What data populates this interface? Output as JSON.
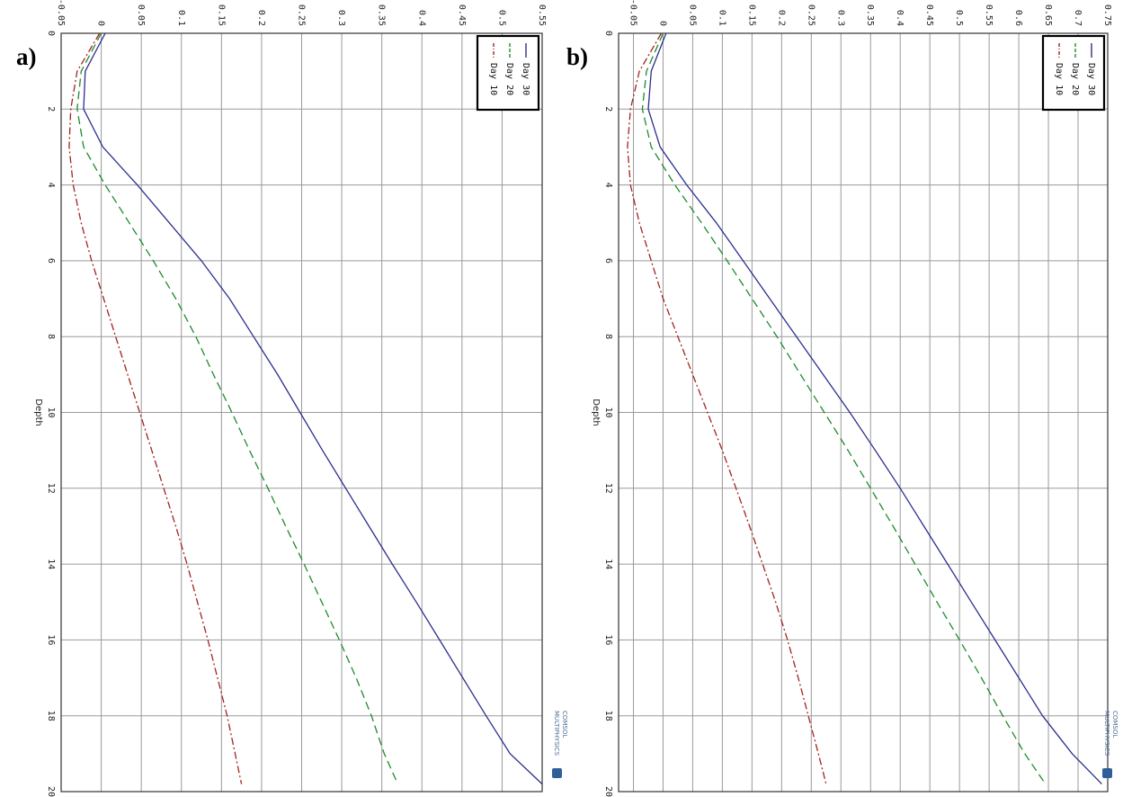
{
  "figure": {
    "colors": {
      "Day 30": "#2b2f8c",
      "Day 20": "#1e8b2a",
      "Day 10": "#a3231c"
    },
    "watermark": {
      "line1": "COMSOL",
      "line2": "MULTIPHYSICS"
    }
  },
  "chart_data": [
    {
      "panel_label": "a)",
      "type": "line",
      "orientation": "rotated 90° clockwise (depth axis runs top to bottom)",
      "xlabel": "Depth",
      "ylabel": "",
      "xlim": [
        0,
        20
      ],
      "ylim": [
        -0.05,
        0.55
      ],
      "x_ticks": [
        "0",
        "2",
        "4",
        "6",
        "8",
        "10",
        "12",
        "14",
        "16",
        "18",
        "20"
      ],
      "y_ticks": [
        "-0.05",
        "0",
        "0.05",
        "0.1",
        "0.15",
        "0.2",
        "0.25",
        "0.3",
        "0.35",
        "0.4",
        "0.45",
        "0.5",
        "0.55"
      ],
      "grid": true,
      "legend_position": "top-right",
      "x": [
        0,
        1,
        2,
        3,
        4,
        5,
        6,
        7,
        8,
        9,
        10,
        11,
        12,
        13,
        14,
        15,
        16,
        17,
        18,
        19,
        19.8
      ],
      "series": [
        {
          "name": "Day 30",
          "style": "solid",
          "values": [
            0.005,
            -0.02,
            -0.022,
            0.002,
            0.045,
            0.085,
            0.125,
            0.16,
            0.19,
            0.22,
            0.248,
            0.276,
            0.305,
            0.334,
            0.363,
            0.393,
            0.422,
            0.451,
            0.48,
            0.51,
            0.55
          ]
        },
        {
          "name": "Day 20",
          "style": "dashed",
          "values": [
            0.0,
            -0.025,
            -0.03,
            -0.022,
            0.005,
            0.035,
            0.065,
            0.093,
            0.118,
            0.14,
            0.163,
            0.185,
            0.208,
            0.23,
            0.253,
            0.275,
            0.297,
            0.318,
            0.337,
            0.353,
            0.37
          ]
        },
        {
          "name": "Day 10",
          "style": "dashdot",
          "values": [
            -0.002,
            -0.03,
            -0.038,
            -0.04,
            -0.035,
            -0.025,
            -0.012,
            0.003,
            0.018,
            0.033,
            0.048,
            0.063,
            0.078,
            0.093,
            0.107,
            0.12,
            0.133,
            0.145,
            0.157,
            0.167,
            0.175
          ]
        }
      ]
    },
    {
      "panel_label": "b)",
      "type": "line",
      "orientation": "rotated 90° clockwise (depth axis runs top to bottom)",
      "xlabel": "Depth",
      "ylabel": "",
      "xlim": [
        0,
        20
      ],
      "ylim": [
        -0.075,
        0.75
      ],
      "x_ticks": [
        "0",
        "2",
        "4",
        "6",
        "8",
        "10",
        "12",
        "14",
        "16",
        "18",
        "20"
      ],
      "y_ticks": [
        "-0.05",
        "0",
        "0.05",
        "0.1",
        "0.15",
        "0.2",
        "0.25",
        "0.3",
        "0.35",
        "0.4",
        "0.45",
        "0.5",
        "0.55",
        "0.6",
        "0.65",
        "0.7",
        "0.75"
      ],
      "grid": true,
      "legend_position": "top-right",
      "x": [
        0,
        1,
        2,
        3,
        4,
        5,
        6,
        7,
        8,
        9,
        10,
        11,
        12,
        13,
        14,
        15,
        16,
        17,
        18,
        19,
        19.8
      ],
      "series": [
        {
          "name": "Day 30",
          "style": "solid",
          "values": [
            0.005,
            -0.02,
            -0.025,
            -0.005,
            0.04,
            0.09,
            0.135,
            0.18,
            0.225,
            0.27,
            0.315,
            0.358,
            0.4,
            0.44,
            0.48,
            0.52,
            0.56,
            0.6,
            0.64,
            0.69,
            0.74
          ]
        },
        {
          "name": "Day 20",
          "style": "dashed",
          "values": [
            0.0,
            -0.028,
            -0.035,
            -0.02,
            0.02,
            0.065,
            0.108,
            0.15,
            0.192,
            0.232,
            0.272,
            0.312,
            0.35,
            0.388,
            0.425,
            0.462,
            0.5,
            0.537,
            0.573,
            0.61,
            0.645
          ]
        },
        {
          "name": "Day 10",
          "style": "dashdot",
          "values": [
            -0.003,
            -0.04,
            -0.055,
            -0.06,
            -0.055,
            -0.04,
            -0.02,
            0.0,
            0.025,
            0.05,
            0.075,
            0.1,
            0.123,
            0.146,
            0.168,
            0.19,
            0.21,
            0.228,
            0.245,
            0.262,
            0.275
          ]
        }
      ]
    }
  ]
}
